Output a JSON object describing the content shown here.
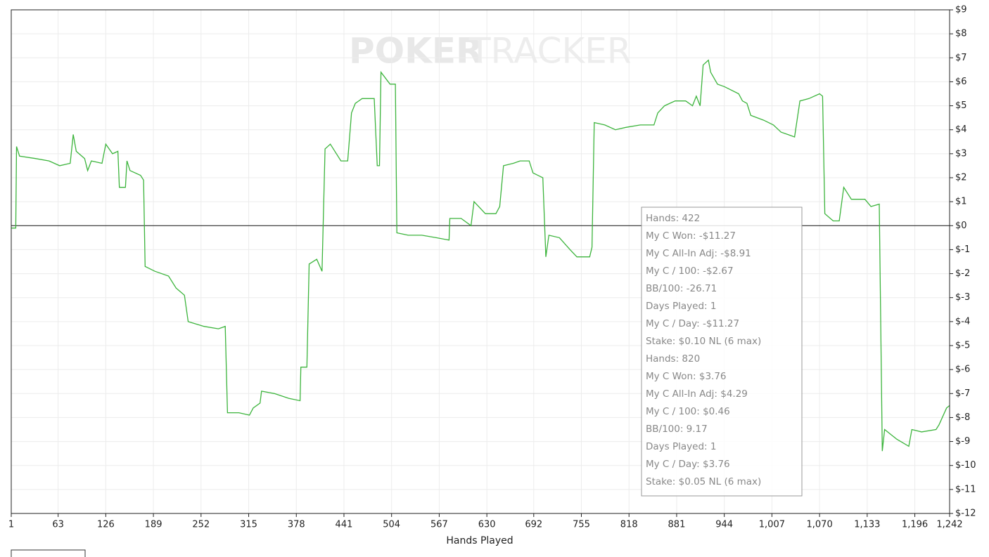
{
  "chart_data": {
    "type": "line",
    "xlabel": "Hands Played",
    "watermark": [
      "POKER",
      "TRACKER"
    ],
    "color": "#3cb43c",
    "grid": true,
    "xlim": [
      1,
      1242
    ],
    "ylim": [
      -12,
      9
    ],
    "xticks": [
      1,
      63,
      126,
      189,
      252,
      315,
      378,
      441,
      504,
      567,
      630,
      692,
      755,
      818,
      881,
      944,
      {
        "value": 1007,
        "label": "1,007"
      },
      {
        "value": 1070,
        "label": "1,070"
      },
      {
        "value": 1133,
        "label": "1,133"
      },
      {
        "value": 1196,
        "label": "1,196"
      },
      {
        "value": 1242,
        "label": "1,242"
      }
    ],
    "yticks": [
      {
        "value": 9,
        "label": "$9"
      },
      {
        "value": 8,
        "label": "$8"
      },
      {
        "value": 7,
        "label": "$7"
      },
      {
        "value": 6,
        "label": "$6"
      },
      {
        "value": 5,
        "label": "$5"
      },
      {
        "value": 4,
        "label": "$4"
      },
      {
        "value": 3,
        "label": "$3"
      },
      {
        "value": 2,
        "label": "$2"
      },
      {
        "value": 1,
        "label": "$1"
      },
      {
        "value": 0,
        "label": "$0"
      },
      {
        "value": -1,
        "label": "$-1"
      },
      {
        "value": -2,
        "label": "$-2"
      },
      {
        "value": -3,
        "label": "$-3"
      },
      {
        "value": -4,
        "label": "$-4"
      },
      {
        "value": -5,
        "label": "$-5"
      },
      {
        "value": -6,
        "label": "$-6"
      },
      {
        "value": -7,
        "label": "$-7"
      },
      {
        "value": -8,
        "label": "$-8"
      },
      {
        "value": -9,
        "label": "$-9"
      },
      {
        "value": -10,
        "label": "$-10"
      },
      {
        "value": -11,
        "label": "$-11"
      },
      {
        "value": -12,
        "label": "$-12"
      }
    ],
    "x": [
      1,
      7,
      8,
      12,
      33,
      51,
      65,
      79,
      83,
      87,
      98,
      102,
      107,
      121,
      126,
      135,
      142,
      144,
      152,
      154,
      158,
      172,
      176,
      178,
      191,
      209,
      219,
      230,
      235,
      256,
      275,
      284,
      287,
      302,
      316,
      321,
      330,
      332,
      349,
      368,
      383,
      384,
      392,
      395,
      405,
      412,
      416,
      423,
      437,
      446,
      451,
      456,
      465,
      481,
      485,
      488,
      490,
      502,
      509,
      511,
      526,
      544,
      563,
      580,
      581,
      596,
      609,
      613,
      628,
      642,
      647,
      652,
      665,
      674,
      686,
      691,
      704,
      708,
      712,
      726,
      740,
      749,
      766,
      769,
      772,
      786,
      800,
      814,
      833,
      851,
      856,
      865,
      879,
      893,
      902,
      907,
      912,
      916,
      923,
      926,
      935,
      944,
      963,
      968,
      974,
      979,
      996,
      1009,
      1019,
      1028,
      1037,
      1044,
      1056,
      1070,
      1074,
      1077,
      1088,
      1096,
      1102,
      1112,
      1130,
      1138,
      1149,
      1153,
      1156,
      1172,
      1188,
      1192,
      1205,
      1224,
      1228,
      1238,
      1242
    ],
    "values": [
      -0.1,
      -0.1,
      3.3,
      2.9,
      2.8,
      2.7,
      2.5,
      2.6,
      3.8,
      3.1,
      2.8,
      2.3,
      2.7,
      2.6,
      3.4,
      3.0,
      3.1,
      1.6,
      1.6,
      2.7,
      2.3,
      2.1,
      1.9,
      -1.7,
      -1.9,
      -2.1,
      -2.6,
      -2.9,
      -4.0,
      -4.2,
      -4.3,
      -4.2,
      -7.8,
      -7.8,
      -7.9,
      -7.6,
      -7.4,
      -6.9,
      -7.0,
      -7.2,
      -7.3,
      -5.9,
      -5.9,
      -1.6,
      -1.4,
      -1.9,
      3.2,
      3.4,
      2.7,
      2.7,
      4.7,
      5.1,
      5.3,
      5.3,
      2.5,
      2.5,
      6.4,
      5.9,
      5.9,
      -0.3,
      -0.4,
      -0.4,
      -0.5,
      -0.6,
      0.3,
      0.3,
      0.0,
      1.0,
      0.5,
      0.5,
      0.8,
      2.5,
      2.6,
      2.7,
      2.7,
      2.2,
      2.0,
      -1.3,
      -0.4,
      -0.5,
      -1.0,
      -1.3,
      -1.3,
      -0.9,
      4.3,
      4.2,
      4.0,
      4.1,
      4.2,
      4.2,
      4.7,
      5.0,
      5.2,
      5.2,
      5.0,
      5.4,
      5.0,
      6.7,
      6.9,
      6.4,
      5.9,
      5.8,
      5.5,
      5.2,
      5.1,
      4.6,
      4.4,
      4.2,
      3.9,
      3.8,
      3.7,
      5.2,
      5.3,
      5.5,
      5.4,
      0.5,
      0.2,
      0.2,
      1.6,
      1.1,
      1.1,
      0.8,
      0.9,
      -9.4,
      -8.5,
      -8.9,
      -9.2,
      -8.5,
      -8.6,
      -8.5,
      -8.3,
      -7.6,
      -7.5
    ]
  },
  "tooltip": {
    "lines": [
      "Hands: 422",
      "My C Won: -$11.27",
      "My C All-In Adj: -$8.91",
      "My C / 100: -$2.67",
      "BB/100: -26.71",
      "Days Played: 1",
      "My C / Day: -$11.27",
      "Stake: $0.10 NL (6 max)",
      "Hands: 820",
      "My C Won: $3.76",
      "My C All-In Adj: $4.29",
      "My C / 100: $0.46",
      "BB/100: 9.17",
      "Days Played: 1",
      "My C / Day: $3.76",
      "Stake: $0.05 NL (6 max)"
    ]
  }
}
